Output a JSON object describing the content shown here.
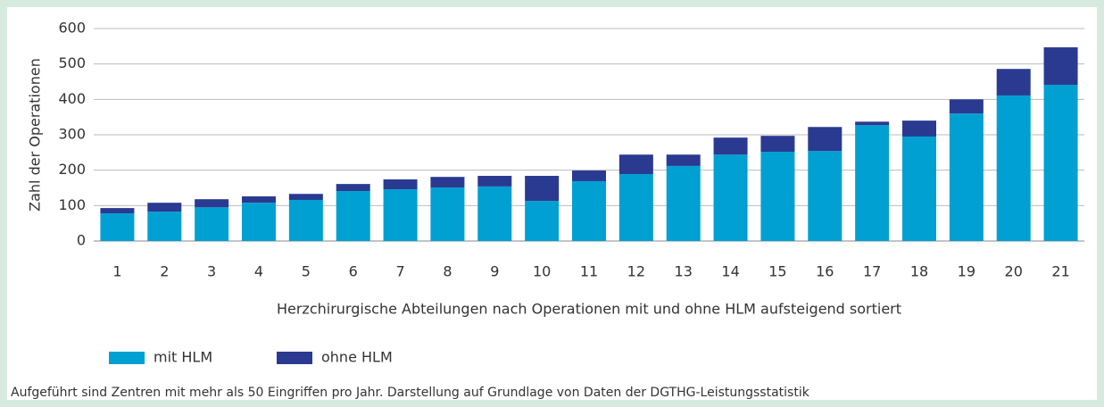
{
  "chart_data": {
    "type": "stacked_bar",
    "x_label": "Herzchirurgische Abteilungen nach Operationen mit und ohne HLM aufsteigend sortiert",
    "y_label": "Zahl der Operationen",
    "note": "Aufgeführt sind Zentren mit mehr als 50 Eingriffen pro Jahr.  Darstellung auf Grundlage von Daten der DGTHG-Leistungsstatistik",
    "categories": [
      "1",
      "2",
      "3",
      "4",
      "5",
      "6",
      "7",
      "8",
      "9",
      "10",
      "11",
      "12",
      "13",
      "14",
      "15",
      "16",
      "17",
      "18",
      "19",
      "20",
      "21"
    ],
    "series": [
      {
        "name": "mit HLM",
        "color": "#00a0d2",
        "values": [
          78,
          83,
          95,
          108,
          116,
          141,
          146,
          151,
          154,
          113,
          169,
          189,
          212,
          244,
          252,
          254,
          327,
          295,
          360,
          411,
          441
        ]
      },
      {
        "name": "ohne HLM",
        "color": "#2a3a91",
        "values": [
          15,
          25,
          23,
          18,
          17,
          20,
          28,
          30,
          30,
          71,
          30,
          55,
          32,
          48,
          45,
          68,
          10,
          45,
          40,
          75,
          106
        ]
      }
    ],
    "ylim": [
      0,
      600
    ],
    "yticks": [
      0,
      100,
      200,
      300,
      400,
      500,
      600
    ],
    "grid": true,
    "legend": "bottom-left"
  }
}
